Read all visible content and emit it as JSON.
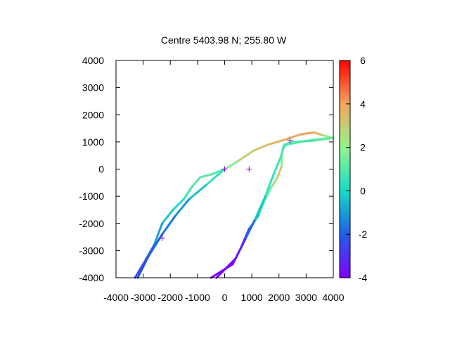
{
  "chart_data": {
    "type": "scatter",
    "title": "Centre 5403.98 N; 255.80  W",
    "xlabel": "",
    "ylabel": "",
    "xlim": [
      -4000,
      4000
    ],
    "ylim": [
      -4000,
      4000
    ],
    "x_ticks": [
      -4000,
      -3000,
      -2000,
      -1000,
      0,
      1000,
      2000,
      3000,
      4000
    ],
    "y_ticks": [
      -4000,
      -3000,
      -2000,
      -1000,
      0,
      1000,
      2000,
      3000,
      4000
    ],
    "x_tick_labels": [
      "-4000",
      "-3000",
      "-2000",
      "-1000",
      "0",
      "1000",
      "2000",
      "3000",
      "4000"
    ],
    "y_tick_labels": [
      "-4000",
      "-3000",
      "-2000",
      "-1000",
      "0",
      "1000",
      "2000",
      "3000",
      "4000"
    ],
    "colorbar": {
      "range": [
        -4,
        6
      ],
      "ticks": [
        -4,
        -2,
        0,
        2,
        4,
        6
      ],
      "tick_labels": [
        "-4",
        "-2",
        "0",
        "2",
        "4",
        "6"
      ],
      "palette": "rainbow"
    },
    "grid": false,
    "legend": "none",
    "series": [
      {
        "points": [
          {
            "x": 0,
            "y": 0,
            "c": 1.0
          },
          {
            "x": 500,
            "y": 300,
            "c": 2.5
          },
          {
            "x": 1100,
            "y": 700,
            "c": 3.2
          },
          {
            "x": 1600,
            "y": 900,
            "c": 3.5
          },
          {
            "x": 2200,
            "y": 1080,
            "c": 3.8
          },
          {
            "x": 2800,
            "y": 1280,
            "c": 4.0
          },
          {
            "x": 3300,
            "y": 1350,
            "c": 4.2
          },
          {
            "x": 3600,
            "y": 1250,
            "c": 3.0
          },
          {
            "x": 4000,
            "y": 1150,
            "c": 1.5
          }
        ]
      },
      {
        "points": [
          {
            "x": 4000,
            "y": 1150,
            "c": 1.5
          },
          {
            "x": 3400,
            "y": 1100,
            "c": 1.2
          },
          {
            "x": 2800,
            "y": 1000,
            "c": 1.2
          },
          {
            "x": 2300,
            "y": 900,
            "c": 1.3
          },
          {
            "x": 2150,
            "y": 800,
            "c": 0.6
          },
          {
            "x": 2100,
            "y": 500,
            "c": 0.4
          },
          {
            "x": 2100,
            "y": 100,
            "c": 3.5
          },
          {
            "x": 1950,
            "y": -300,
            "c": 3.0
          },
          {
            "x": 1700,
            "y": -700,
            "c": 2.0
          },
          {
            "x": 1450,
            "y": -1200,
            "c": 1.0
          },
          {
            "x": 1250,
            "y": -1700,
            "c": 0.2
          },
          {
            "x": 900,
            "y": -2200,
            "c": -1.5
          },
          {
            "x": 600,
            "y": -2900,
            "c": -3.5
          },
          {
            "x": 300,
            "y": -3500,
            "c": -4.0
          },
          {
            "x": -500,
            "y": -4000,
            "c": -4.0
          }
        ]
      },
      {
        "points": [
          {
            "x": 4000,
            "y": 1150,
            "c": 1.5
          },
          {
            "x": 3300,
            "y": 1050,
            "c": 1.0
          },
          {
            "x": 2500,
            "y": 1000,
            "c": 0.8
          },
          {
            "x": 2200,
            "y": 900,
            "c": 1.0
          },
          {
            "x": 2050,
            "y": 400,
            "c": 0.6
          },
          {
            "x": 1800,
            "y": -200,
            "c": 0.5
          },
          {
            "x": 1500,
            "y": -1000,
            "c": 0.3
          },
          {
            "x": 1100,
            "y": -1900,
            "c": -1.0
          },
          {
            "x": 750,
            "y": -2600,
            "c": -2.8
          },
          {
            "x": 400,
            "y": -3300,
            "c": -3.8
          },
          {
            "x": -300,
            "y": -4000,
            "c": -4.0
          }
        ]
      },
      {
        "points": [
          {
            "x": 0,
            "y": 0,
            "c": 1.0
          },
          {
            "x": -500,
            "y": -200,
            "c": 1.0
          },
          {
            "x": -900,
            "y": -300,
            "c": 1.2
          },
          {
            "x": -1200,
            "y": -650,
            "c": 0.8
          },
          {
            "x": -1500,
            "y": -1100,
            "c": 0.5
          },
          {
            "x": -1900,
            "y": -1500,
            "c": -0.2
          },
          {
            "x": -2300,
            "y": -2000,
            "c": -0.5
          },
          {
            "x": -2600,
            "y": -2800,
            "c": -1.5
          },
          {
            "x": -3000,
            "y": -3500,
            "c": -2.0
          },
          {
            "x": -3300,
            "y": -4000,
            "c": -2.5
          }
        ]
      },
      {
        "points": [
          {
            "x": 0,
            "y": 0,
            "c": 1.0
          },
          {
            "x": -700,
            "y": -600,
            "c": 0.0
          },
          {
            "x": -1300,
            "y": -1100,
            "c": -0.8
          },
          {
            "x": -1800,
            "y": -1700,
            "c": -1.5
          },
          {
            "x": -2300,
            "y": -2400,
            "c": -1.8
          },
          {
            "x": -2800,
            "y": -3200,
            "c": -2.2
          },
          {
            "x": -3200,
            "y": -4000,
            "c": -2.5
          }
        ]
      }
    ],
    "markers": [
      {
        "x": 0,
        "y": 0
      },
      {
        "x": 900,
        "y": 0
      },
      {
        "x": 2400,
        "y": 1050
      },
      {
        "x": -2300,
        "y": -2550
      }
    ]
  }
}
